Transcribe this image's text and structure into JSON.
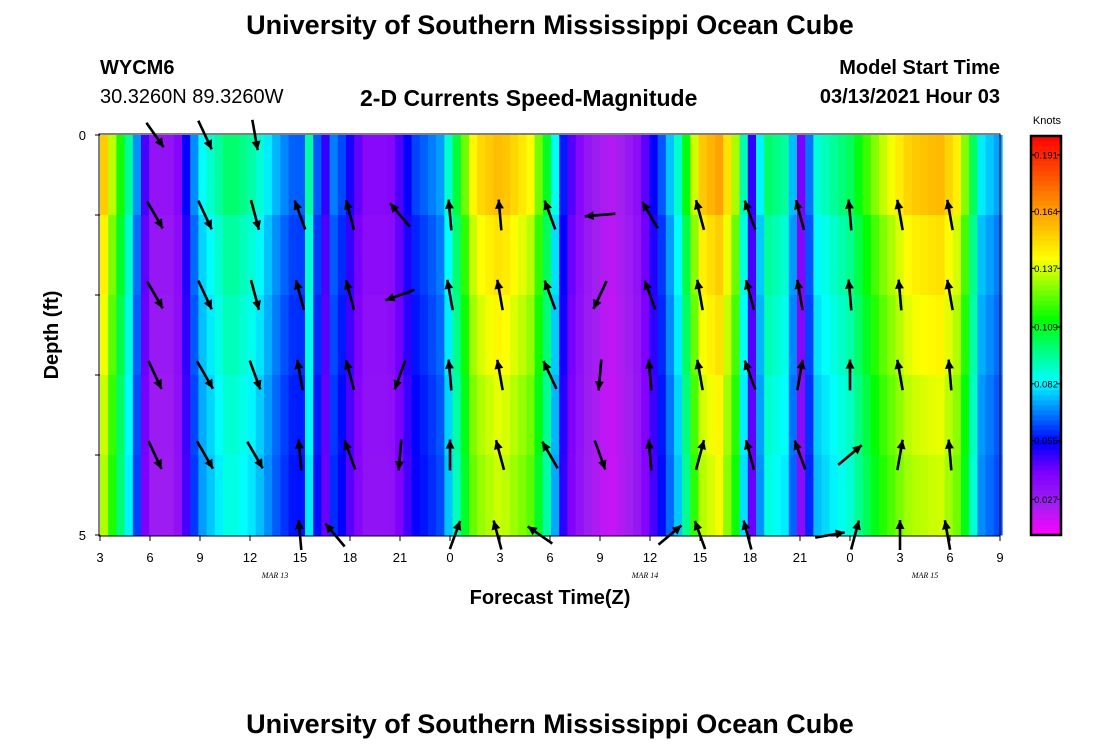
{
  "title": "University of Southern Mississippi Ocean Cube",
  "footer_title": "University of Southern Mississippi Ocean Cube",
  "station": {
    "id": "WYCM6",
    "coords": "30.3260N 89.3260W"
  },
  "plot_title": "2-D Currents Speed-Magnitude",
  "model_start": {
    "label": "Model Start Time",
    "value": "03/13/2021 Hour 03"
  },
  "chart_data": {
    "type": "heatmap",
    "title": "2-D Currents Speed-Magnitude",
    "xlabel": "Forecast Time(Z)",
    "ylabel": "Depth (ft)",
    "colorbar_label": "Knots",
    "x_tick_labels": [
      "3",
      "6",
      "9",
      "12",
      "15",
      "18",
      "21",
      "0",
      "3",
      "6",
      "9",
      "12",
      "15",
      "18",
      "21",
      "0",
      "3",
      "6",
      "9"
    ],
    "x_date_labels": [
      {
        "text": "MAR 13",
        "hour_index": 3.5
      },
      {
        "text": "MAR 14",
        "hour_index": 10.9
      },
      {
        "text": "MAR 15",
        "hour_index": 16.5
      }
    ],
    "y_tick_labels": [
      "0",
      "5"
    ],
    "y_range": [
      0,
      5
    ],
    "colorbar_ticks": [
      0.191,
      0.164,
      0.137,
      0.109,
      0.082,
      0.055,
      0.027
    ],
    "colorbar_range": [
      0.01,
      0.2
    ],
    "colormap": [
      "#ff00ff",
      "#a020f0",
      "#8000ff",
      "#0000ff",
      "#0080ff",
      "#00ffff",
      "#00ff80",
      "#00ff00",
      "#80ff00",
      "#ffff00",
      "#ffc000",
      "#ff8000",
      "#ff4000",
      "#ff0000"
    ],
    "depth_layers": 5,
    "speed_profile": [
      {
        "t": 0.0,
        "v": 0.16
      },
      {
        "t": 0.6,
        "v": 0.09
      },
      {
        "t": 1.0,
        "v": 0.03
      },
      {
        "t": 1.5,
        "v": 0.03
      },
      {
        "t": 2.0,
        "v": 0.08
      },
      {
        "t": 2.6,
        "v": 0.1
      },
      {
        "t": 3.1,
        "v": 0.09
      },
      {
        "t": 3.6,
        "v": 0.07
      },
      {
        "t": 4.0,
        "v": 0.06
      },
      {
        "t": 4.2,
        "v": 0.095
      },
      {
        "t": 4.45,
        "v": 0.04
      },
      {
        "t": 4.7,
        "v": 0.07
      },
      {
        "t": 5.0,
        "v": 0.05
      },
      {
        "t": 5.3,
        "v": 0.035
      },
      {
        "t": 5.8,
        "v": 0.035
      },
      {
        "t": 6.3,
        "v": 0.06
      },
      {
        "t": 6.8,
        "v": 0.07
      },
      {
        "t": 7.1,
        "v": 0.1
      },
      {
        "t": 7.5,
        "v": 0.145
      },
      {
        "t": 8.0,
        "v": 0.155
      },
      {
        "t": 8.6,
        "v": 0.14
      },
      {
        "t": 9.0,
        "v": 0.1
      },
      {
        "t": 9.3,
        "v": 0.05
      },
      {
        "t": 9.7,
        "v": 0.03
      },
      {
        "t": 10.2,
        "v": 0.02
      },
      {
        "t": 10.7,
        "v": 0.03
      },
      {
        "t": 11.2,
        "v": 0.06
      },
      {
        "t": 11.6,
        "v": 0.09
      },
      {
        "t": 12.0,
        "v": 0.15
      },
      {
        "t": 12.4,
        "v": 0.16
      },
      {
        "t": 12.8,
        "v": 0.12
      },
      {
        "t": 13.0,
        "v": 0.04
      },
      {
        "t": 13.3,
        "v": 0.1
      },
      {
        "t": 13.8,
        "v": 0.09
      },
      {
        "t": 14.0,
        "v": 0.035
      },
      {
        "t": 14.3,
        "v": 0.085
      },
      {
        "t": 15.0,
        "v": 0.1
      },
      {
        "t": 15.6,
        "v": 0.13
      },
      {
        "t": 16.2,
        "v": 0.15
      },
      {
        "t": 16.8,
        "v": 0.155
      },
      {
        "t": 17.2,
        "v": 0.14
      },
      {
        "t": 17.6,
        "v": 0.08
      },
      {
        "t": 18.0,
        "v": 0.07
      }
    ],
    "layer_factors": [
      1.02,
      0.96,
      0.93,
      0.9,
      0.88
    ],
    "current_vectors": [
      {
        "t": 1.1,
        "layer": 0,
        "speed": 0.05,
        "dir_deg": 145
      },
      {
        "t": 2.1,
        "layer": 0,
        "speed": 0.07,
        "dir_deg": 155
      },
      {
        "t": 3.1,
        "layer": 0,
        "speed": 0.06,
        "dir_deg": 170
      },
      {
        "t": 1.1,
        "layer": 1,
        "speed": 0.06,
        "dir_deg": 150
      },
      {
        "t": 2.1,
        "layer": 1,
        "speed": 0.07,
        "dir_deg": 155
      },
      {
        "t": 3.1,
        "layer": 1,
        "speed": 0.06,
        "dir_deg": 165
      },
      {
        "t": 1.1,
        "layer": 2,
        "speed": 0.06,
        "dir_deg": 150
      },
      {
        "t": 2.1,
        "layer": 2,
        "speed": 0.07,
        "dir_deg": 155
      },
      {
        "t": 3.1,
        "layer": 2,
        "speed": 0.06,
        "dir_deg": 165
      },
      {
        "t": 1.1,
        "layer": 3,
        "speed": 0.06,
        "dir_deg": 155
      },
      {
        "t": 2.1,
        "layer": 3,
        "speed": 0.07,
        "dir_deg": 150
      },
      {
        "t": 3.1,
        "layer": 3,
        "speed": 0.06,
        "dir_deg": 160
      },
      {
        "t": 1.1,
        "layer": 4,
        "speed": 0.06,
        "dir_deg": 155
      },
      {
        "t": 2.1,
        "layer": 4,
        "speed": 0.07,
        "dir_deg": 150
      },
      {
        "t": 3.1,
        "layer": 4,
        "speed": 0.06,
        "dir_deg": 150
      },
      {
        "t": 4.0,
        "layer": 1,
        "speed": 0.06,
        "dir_deg": -20
      },
      {
        "t": 5.0,
        "layer": 1,
        "speed": 0.06,
        "dir_deg": -15
      },
      {
        "t": 6.0,
        "layer": 1,
        "speed": 0.06,
        "dir_deg": -40
      },
      {
        "t": 7.0,
        "layer": 1,
        "speed": 0.06,
        "dir_deg": -5
      },
      {
        "t": 8.0,
        "layer": 1,
        "speed": 0.06,
        "dir_deg": -5
      },
      {
        "t": 9.0,
        "layer": 1,
        "speed": 0.06,
        "dir_deg": -20
      },
      {
        "t": 10.0,
        "layer": 1,
        "speed": 0.06,
        "dir_deg": -95
      },
      {
        "t": 11.0,
        "layer": 1,
        "speed": 0.06,
        "dir_deg": -30
      },
      {
        "t": 12.0,
        "layer": 1,
        "speed": 0.06,
        "dir_deg": -15
      },
      {
        "t": 13.0,
        "layer": 1,
        "speed": 0.06,
        "dir_deg": -20
      },
      {
        "t": 14.0,
        "layer": 1,
        "speed": 0.06,
        "dir_deg": -15
      },
      {
        "t": 15.0,
        "layer": 1,
        "speed": 0.06,
        "dir_deg": -5
      },
      {
        "t": 16.0,
        "layer": 1,
        "speed": 0.06,
        "dir_deg": -10
      },
      {
        "t": 17.0,
        "layer": 1,
        "speed": 0.06,
        "dir_deg": -10
      },
      {
        "t": 4.0,
        "layer": 2,
        "speed": 0.06,
        "dir_deg": -15
      },
      {
        "t": 5.0,
        "layer": 2,
        "speed": 0.06,
        "dir_deg": -15
      },
      {
        "t": 6.0,
        "layer": 2,
        "speed": 0.06,
        "dir_deg": -110
      },
      {
        "t": 7.0,
        "layer": 2,
        "speed": 0.06,
        "dir_deg": -10
      },
      {
        "t": 8.0,
        "layer": 2,
        "speed": 0.06,
        "dir_deg": -10
      },
      {
        "t": 9.0,
        "layer": 2,
        "speed": 0.06,
        "dir_deg": -20
      },
      {
        "t": 10.0,
        "layer": 2,
        "speed": 0.06,
        "dir_deg": -155
      },
      {
        "t": 11.0,
        "layer": 2,
        "speed": 0.06,
        "dir_deg": -20
      },
      {
        "t": 12.0,
        "layer": 2,
        "speed": 0.06,
        "dir_deg": -10
      },
      {
        "t": 13.0,
        "layer": 2,
        "speed": 0.06,
        "dir_deg": -15
      },
      {
        "t": 14.0,
        "layer": 2,
        "speed": 0.06,
        "dir_deg": -10
      },
      {
        "t": 15.0,
        "layer": 2,
        "speed": 0.06,
        "dir_deg": -5
      },
      {
        "t": 16.0,
        "layer": 2,
        "speed": 0.06,
        "dir_deg": -5
      },
      {
        "t": 17.0,
        "layer": 2,
        "speed": 0.06,
        "dir_deg": -10
      },
      {
        "t": 4.0,
        "layer": 3,
        "speed": 0.06,
        "dir_deg": -10
      },
      {
        "t": 5.0,
        "layer": 3,
        "speed": 0.06,
        "dir_deg": -15
      },
      {
        "t": 6.0,
        "layer": 3,
        "speed": 0.06,
        "dir_deg": -160
      },
      {
        "t": 7.0,
        "layer": 3,
        "speed": 0.06,
        "dir_deg": -5
      },
      {
        "t": 8.0,
        "layer": 3,
        "speed": 0.06,
        "dir_deg": -10
      },
      {
        "t": 9.0,
        "layer": 3,
        "speed": 0.06,
        "dir_deg": -25
      },
      {
        "t": 10.0,
        "layer": 3,
        "speed": 0.06,
        "dir_deg": -175
      },
      {
        "t": 11.0,
        "layer": 3,
        "speed": 0.06,
        "dir_deg": -5
      },
      {
        "t": 12.0,
        "layer": 3,
        "speed": 0.06,
        "dir_deg": -10
      },
      {
        "t": 13.0,
        "layer": 3,
        "speed": 0.06,
        "dir_deg": -20
      },
      {
        "t": 14.0,
        "layer": 3,
        "speed": 0.06,
        "dir_deg": 10
      },
      {
        "t": 15.0,
        "layer": 3,
        "speed": 0.06,
        "dir_deg": 0
      },
      {
        "t": 16.0,
        "layer": 3,
        "speed": 0.06,
        "dir_deg": -10
      },
      {
        "t": 17.0,
        "layer": 3,
        "speed": 0.06,
        "dir_deg": -5
      },
      {
        "t": 4.0,
        "layer": 4,
        "speed": 0.06,
        "dir_deg": -5
      },
      {
        "t": 5.0,
        "layer": 4,
        "speed": 0.06,
        "dir_deg": -20
      },
      {
        "t": 6.0,
        "layer": 4,
        "speed": 0.06,
        "dir_deg": -175
      },
      {
        "t": 7.0,
        "layer": 4,
        "speed": 0.06,
        "dir_deg": 0
      },
      {
        "t": 8.0,
        "layer": 4,
        "speed": 0.06,
        "dir_deg": -15
      },
      {
        "t": 9.0,
        "layer": 4,
        "speed": 0.06,
        "dir_deg": -30
      },
      {
        "t": 10.0,
        "layer": 4,
        "speed": 0.06,
        "dir_deg": 160
      },
      {
        "t": 11.0,
        "layer": 4,
        "speed": 0.06,
        "dir_deg": -5
      },
      {
        "t": 12.0,
        "layer": 4,
        "speed": 0.06,
        "dir_deg": 15
      },
      {
        "t": 13.0,
        "layer": 4,
        "speed": 0.06,
        "dir_deg": -15
      },
      {
        "t": 14.0,
        "layer": 4,
        "speed": 0.06,
        "dir_deg": -20
      },
      {
        "t": 15.0,
        "layer": 4,
        "speed": 0.06,
        "dir_deg": 50
      },
      {
        "t": 16.0,
        "layer": 4,
        "speed": 0.06,
        "dir_deg": 10
      },
      {
        "t": 17.0,
        "layer": 4,
        "speed": 0.06,
        "dir_deg": -5
      },
      {
        "t": 4.0,
        "layer": 5,
        "speed": 0.05,
        "dir_deg": -5
      },
      {
        "t": 4.7,
        "layer": 5,
        "speed": 0.05,
        "dir_deg": -40
      },
      {
        "t": 7.1,
        "layer": 5,
        "speed": 0.05,
        "dir_deg": 20
      },
      {
        "t": 7.95,
        "layer": 5,
        "speed": 0.05,
        "dir_deg": -15
      },
      {
        "t": 8.8,
        "layer": 5,
        "speed": 0.05,
        "dir_deg": -55
      },
      {
        "t": 11.4,
        "layer": 5,
        "speed": 0.05,
        "dir_deg": 50
      },
      {
        "t": 12.0,
        "layer": 5,
        "speed": 0.05,
        "dir_deg": -20
      },
      {
        "t": 12.95,
        "layer": 5,
        "speed": 0.05,
        "dir_deg": -15
      },
      {
        "t": 14.6,
        "layer": 5,
        "speed": 0.05,
        "dir_deg": 80
      },
      {
        "t": 15.1,
        "layer": 5,
        "speed": 0.05,
        "dir_deg": 15
      },
      {
        "t": 16.0,
        "layer": 5,
        "speed": 0.05,
        "dir_deg": 0
      },
      {
        "t": 16.95,
        "layer": 5,
        "speed": 0.05,
        "dir_deg": -10
      }
    ]
  }
}
